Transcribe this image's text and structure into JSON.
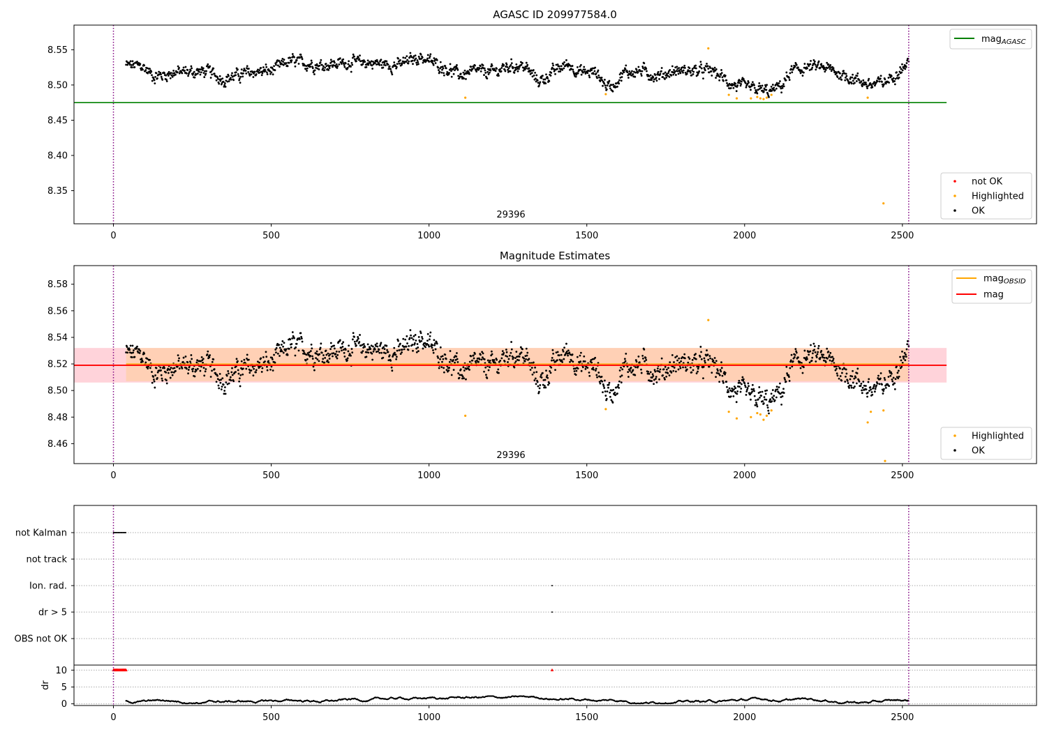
{
  "chart_data": [
    {
      "type": "scatter",
      "title": "AGASC ID 209977584.0",
      "annotation": "29396",
      "xlim": [
        -125,
        2925
      ],
      "ylim": [
        8.303,
        8.585
      ],
      "xticks": [
        0,
        500,
        1000,
        1500,
        2000,
        2500
      ],
      "yticks": [
        8.35,
        8.4,
        8.45,
        8.5,
        8.55
      ],
      "vlines": [
        0,
        2520
      ],
      "hline": {
        "name": "mag_AGASC",
        "value": 8.475,
        "x": [
          -125,
          2640
        ],
        "color": "#008000"
      },
      "legend_lines": [
        {
          "name": "mag",
          "sub": "AGASC",
          "color": "#008000"
        }
      ],
      "legend_markers": [
        {
          "name": "not OK",
          "color": "#ff0000"
        },
        {
          "name": "Highlighted",
          "color": "#ffa500"
        },
        {
          "name": "OK",
          "color": "#000000"
        }
      ],
      "trend": [
        [
          40,
          8.528
        ],
        [
          90,
          8.527
        ],
        [
          130,
          8.512
        ],
        [
          200,
          8.518
        ],
        [
          300,
          8.519
        ],
        [
          350,
          8.508
        ],
        [
          430,
          8.518
        ],
        [
          500,
          8.52
        ],
        [
          560,
          8.534
        ],
        [
          650,
          8.528
        ],
        [
          750,
          8.532
        ],
        [
          800,
          8.532
        ],
        [
          900,
          8.528
        ],
        [
          970,
          8.54
        ],
        [
          1050,
          8.525
        ],
        [
          1100,
          8.514
        ],
        [
          1150,
          8.52
        ],
        [
          1200,
          8.518
        ],
        [
          1260,
          8.527
        ],
        [
          1300,
          8.527
        ],
        [
          1350,
          8.505
        ],
        [
          1400,
          8.52
        ],
        [
          1440,
          8.53
        ],
        [
          1480,
          8.518
        ],
        [
          1530,
          8.518
        ],
        [
          1560,
          8.5
        ],
        [
          1580,
          8.498
        ],
        [
          1620,
          8.518
        ],
        [
          1680,
          8.52
        ],
        [
          1720,
          8.512
        ],
        [
          1780,
          8.52
        ],
        [
          1850,
          8.52
        ],
        [
          1900,
          8.52
        ],
        [
          1930,
          8.51
        ],
        [
          1960,
          8.5
        ],
        [
          2000,
          8.497
        ],
        [
          2050,
          8.493
        ],
        [
          2080,
          8.49
        ],
        [
          2120,
          8.5
        ],
        [
          2150,
          8.52
        ],
        [
          2200,
          8.525
        ],
        [
          2250,
          8.525
        ],
        [
          2280,
          8.52
        ],
        [
          2320,
          8.513
        ],
        [
          2370,
          8.505
        ],
        [
          2400,
          8.5
        ],
        [
          2450,
          8.505
        ],
        [
          2480,
          8.517
        ],
        [
          2520,
          8.532
        ]
      ],
      "highlighted": [
        [
          1115,
          8.482
        ],
        [
          1560,
          8.487
        ],
        [
          1885,
          8.552
        ],
        [
          1950,
          8.486
        ],
        [
          1975,
          8.481
        ],
        [
          2020,
          8.481
        ],
        [
          2040,
          8.483
        ],
        [
          2050,
          8.481
        ],
        [
          2060,
          8.48
        ],
        [
          2070,
          8.482
        ],
        [
          2085,
          8.486
        ],
        [
          2390,
          8.482
        ],
        [
          2440,
          8.332
        ]
      ],
      "not_ok": []
    },
    {
      "type": "scatter",
      "title": "Magnitude Estimates",
      "annotation": "29396",
      "xlim": [
        -125,
        2925
      ],
      "ylim": [
        8.445,
        8.594
      ],
      "xticks": [
        0,
        500,
        1000,
        1500,
        2000,
        2500
      ],
      "yticks": [
        8.46,
        8.48,
        8.5,
        8.52,
        8.54,
        8.56,
        8.58
      ],
      "vlines": [
        0,
        2520
      ],
      "hline": {
        "name": "mag",
        "value": 8.519,
        "x": [
          -125,
          2640
        ],
        "color": "#ff0000"
      },
      "band_outer": {
        "low": 8.506,
        "high": 8.532,
        "color": "#ffc0cb"
      },
      "band_obsid": {
        "low": 8.507,
        "high": 8.532,
        "x": [
          40,
          2520
        ],
        "color": "#ffcfa8"
      },
      "obsid_line": {
        "value": 8.52,
        "x": [
          40,
          2520
        ],
        "color": "#ffa500"
      },
      "legend_lines": [
        {
          "name": "mag",
          "sub": "OBSID",
          "color": "#ffa500"
        },
        {
          "name": "mag",
          "sub": "",
          "color": "#ff0000"
        }
      ],
      "legend_markers": [
        {
          "name": "Highlighted",
          "color": "#ffa500"
        },
        {
          "name": "OK",
          "color": "#000000"
        }
      ],
      "highlighted": [
        [
          1115,
          8.481
        ],
        [
          1560,
          8.486
        ],
        [
          1885,
          8.553
        ],
        [
          1950,
          8.484
        ],
        [
          1975,
          8.479
        ],
        [
          2020,
          8.48
        ],
        [
          2040,
          8.483
        ],
        [
          2050,
          8.482
        ],
        [
          2060,
          8.478
        ],
        [
          2070,
          8.481
        ],
        [
          2085,
          8.485
        ],
        [
          2390,
          8.476
        ],
        [
          2400,
          8.484
        ],
        [
          2440,
          8.485
        ],
        [
          2445,
          8.447
        ]
      ]
    },
    {
      "type": "scatter",
      "title": "",
      "xlim": [
        -125,
        2925
      ],
      "categories": [
        "not Kalman",
        "not track",
        "Ion. rad.",
        "dr > 5",
        "OBS not OK"
      ],
      "flags": {
        "not Kalman": [
          [
            0,
            40
          ]
        ],
        "not track": [],
        "Ion. rad.": [
          [
            1390,
            1390
          ]
        ],
        "dr > 5": [
          [
            1390,
            1390
          ]
        ],
        "OBS not OK": []
      },
      "dr_ylabel": "dr",
      "dr_ylim": [
        -0.5,
        11.5
      ],
      "dr_yticks": [
        0,
        5,
        10
      ],
      "dr_red": [
        [
          0,
          40
        ]
      ],
      "dr_red_points": [
        1390
      ],
      "xticks": [
        0,
        500,
        1000,
        1500,
        2000,
        2500
      ],
      "vlines": [
        0,
        2520
      ]
    }
  ]
}
